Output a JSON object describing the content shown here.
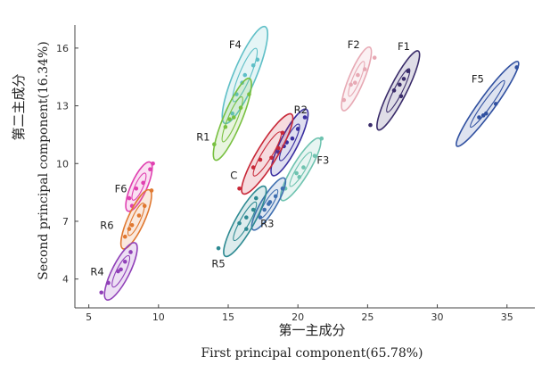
{
  "chart_data": {
    "type": "scatter",
    "xlabel_cn": "第一主成分",
    "xlabel_en": "First principal component(65.78%)",
    "ylabel_cn": "第二主成分",
    "ylabel_en": "Second principal component(16.34%)",
    "xlim": [
      4,
      37
    ],
    "ylim": [
      2.5,
      17.2
    ],
    "xticks": [
      5,
      10,
      15,
      20,
      25,
      30,
      35
    ],
    "yticks": [
      4,
      7,
      10,
      13,
      16
    ],
    "grid": false,
    "legend": "none",
    "groups": [
      {
        "name": "F4",
        "color": "#5fbfc7",
        "label_at": [
          15.5,
          16.0
        ],
        "center": [
          16.2,
          14.6
        ],
        "major": 5.8,
        "minor": 1.35,
        "angle": 60,
        "points": [
          [
            15.6,
            13.6
          ],
          [
            16.2,
            14.6
          ],
          [
            16.8,
            15.1
          ],
          [
            17.1,
            15.4
          ],
          [
            15.3,
            12.6
          ],
          [
            16.0,
            14.2
          ]
        ]
      },
      {
        "name": "R1",
        "color": "#78c040",
        "label_at": [
          13.2,
          11.2
        ],
        "center": [
          15.3,
          12.3
        ],
        "major": 4.9,
        "minor": 1.1,
        "angle": 60,
        "points": [
          [
            14.0,
            11.0
          ],
          [
            14.8,
            11.9
          ],
          [
            15.4,
            12.4
          ],
          [
            15.9,
            12.9
          ],
          [
            16.5,
            13.6
          ],
          [
            15.1,
            12.3
          ]
        ]
      },
      {
        "name": "F2",
        "color": "#e7a9b4",
        "label_at": [
          24.0,
          16.0
        ],
        "center": [
          24.2,
          14.4
        ],
        "major": 3.8,
        "minor": 0.9,
        "angle": 60,
        "points": [
          [
            23.3,
            13.3
          ],
          [
            23.8,
            14.1
          ],
          [
            24.3,
            14.6
          ],
          [
            24.8,
            14.9
          ],
          [
            25.5,
            15.5
          ],
          [
            24.1,
            14.2
          ]
        ]
      },
      {
        "name": "F1",
        "color": "#3a2c6a",
        "label_at": [
          27.6,
          15.9
        ],
        "center": [
          27.2,
          13.8
        ],
        "major": 5.0,
        "minor": 1.0,
        "angle": 55,
        "points": [
          [
            25.2,
            12.0
          ],
          [
            26.9,
            13.8
          ],
          [
            27.3,
            14.1
          ],
          [
            27.6,
            14.4
          ],
          [
            27.9,
            14.8
          ],
          [
            27.4,
            13.5
          ]
        ]
      },
      {
        "name": "F5",
        "color": "#3050a0",
        "label_at": [
          32.9,
          14.2
        ],
        "center": [
          33.6,
          13.1
        ],
        "major": 6.2,
        "minor": 0.95,
        "angle": 45,
        "points": [
          [
            33.0,
            12.4
          ],
          [
            33.3,
            12.5
          ],
          [
            33.5,
            12.6
          ],
          [
            34.2,
            13.1
          ],
          [
            35.7,
            15.0
          ]
        ]
      },
      {
        "name": "R2",
        "color": "#3a2fa0",
        "label_at": [
          20.2,
          12.6
        ],
        "center": [
          19.4,
          11.1
        ],
        "major": 4.2,
        "minor": 1.05,
        "angle": 55,
        "points": [
          [
            18.6,
            10.6
          ],
          [
            19.0,
            10.9
          ],
          [
            19.6,
            11.3
          ],
          [
            20.0,
            11.8
          ],
          [
            20.5,
            12.4
          ],
          [
            19.2,
            11.1
          ]
        ]
      },
      {
        "name": "C",
        "color": "#c82838",
        "label_at": [
          15.4,
          9.2
        ],
        "center": [
          17.8,
          10.5
        ],
        "major": 5.4,
        "minor": 1.2,
        "angle": 50,
        "points": [
          [
            15.8,
            8.7
          ],
          [
            16.8,
            9.8
          ],
          [
            17.3,
            10.2
          ],
          [
            18.1,
            10.3
          ],
          [
            18.6,
            10.8
          ],
          [
            18.9,
            11.6
          ]
        ]
      },
      {
        "name": "F3",
        "color": "#6fc3b0",
        "label_at": [
          21.8,
          10.0
        ],
        "center": [
          20.2,
          9.7
        ],
        "major": 4.2,
        "minor": 1.0,
        "angle": 50,
        "points": [
          [
            19.1,
            8.7
          ],
          [
            19.9,
            9.5
          ],
          [
            20.4,
            9.8
          ],
          [
            21.2,
            10.4
          ],
          [
            21.7,
            11.3
          ],
          [
            20.1,
            9.3
          ]
        ]
      },
      {
        "name": "R3",
        "color": "#3f6fb0",
        "label_at": [
          17.8,
          6.7
        ],
        "center": [
          17.9,
          7.9
        ],
        "major": 3.5,
        "minor": 0.9,
        "angle": 50,
        "points": [
          [
            17.3,
            7.2
          ],
          [
            17.6,
            7.6
          ],
          [
            18.0,
            8.0
          ],
          [
            18.4,
            8.3
          ],
          [
            18.9,
            8.7
          ],
          [
            17.9,
            7.9
          ]
        ]
      },
      {
        "name": "R5",
        "color": "#2e8a92",
        "label_at": [
          14.3,
          4.6
        ],
        "center": [
          16.2,
          7.0
        ],
        "major": 4.6,
        "minor": 1.1,
        "angle": 52,
        "points": [
          [
            14.3,
            5.6
          ],
          [
            15.8,
            6.9
          ],
          [
            16.3,
            7.2
          ],
          [
            16.8,
            7.6
          ],
          [
            17.0,
            8.2
          ],
          [
            16.3,
            6.6
          ]
        ]
      },
      {
        "name": "F6",
        "color": "#e040b0",
        "label_at": [
          7.3,
          8.5
        ],
        "center": [
          8.6,
          8.8
        ],
        "major": 3.0,
        "minor": 0.95,
        "angle": 58,
        "points": [
          [
            7.9,
            8.2
          ],
          [
            8.4,
            8.7
          ],
          [
            8.9,
            9.0
          ],
          [
            9.4,
            9.7
          ],
          [
            9.6,
            10.0
          ],
          [
            8.1,
            7.8
          ]
        ]
      },
      {
        "name": "R6",
        "color": "#e07830",
        "label_at": [
          6.3,
          6.6
        ],
        "center": [
          8.4,
          7.1
        ],
        "major": 3.6,
        "minor": 1.0,
        "angle": 58,
        "points": [
          [
            7.6,
            6.2
          ],
          [
            8.1,
            6.8
          ],
          [
            8.6,
            7.3
          ],
          [
            9.0,
            7.8
          ],
          [
            9.5,
            8.6
          ],
          [
            7.9,
            6.6
          ]
        ]
      },
      {
        "name": "R4",
        "color": "#9040b8",
        "label_at": [
          5.6,
          4.2
        ],
        "center": [
          7.3,
          4.4
        ],
        "major": 3.6,
        "minor": 1.05,
        "angle": 55,
        "points": [
          [
            5.9,
            3.3
          ],
          [
            6.4,
            3.8
          ],
          [
            7.1,
            4.4
          ],
          [
            7.6,
            4.9
          ],
          [
            8.0,
            5.4
          ],
          [
            7.3,
            4.5
          ]
        ]
      }
    ]
  }
}
